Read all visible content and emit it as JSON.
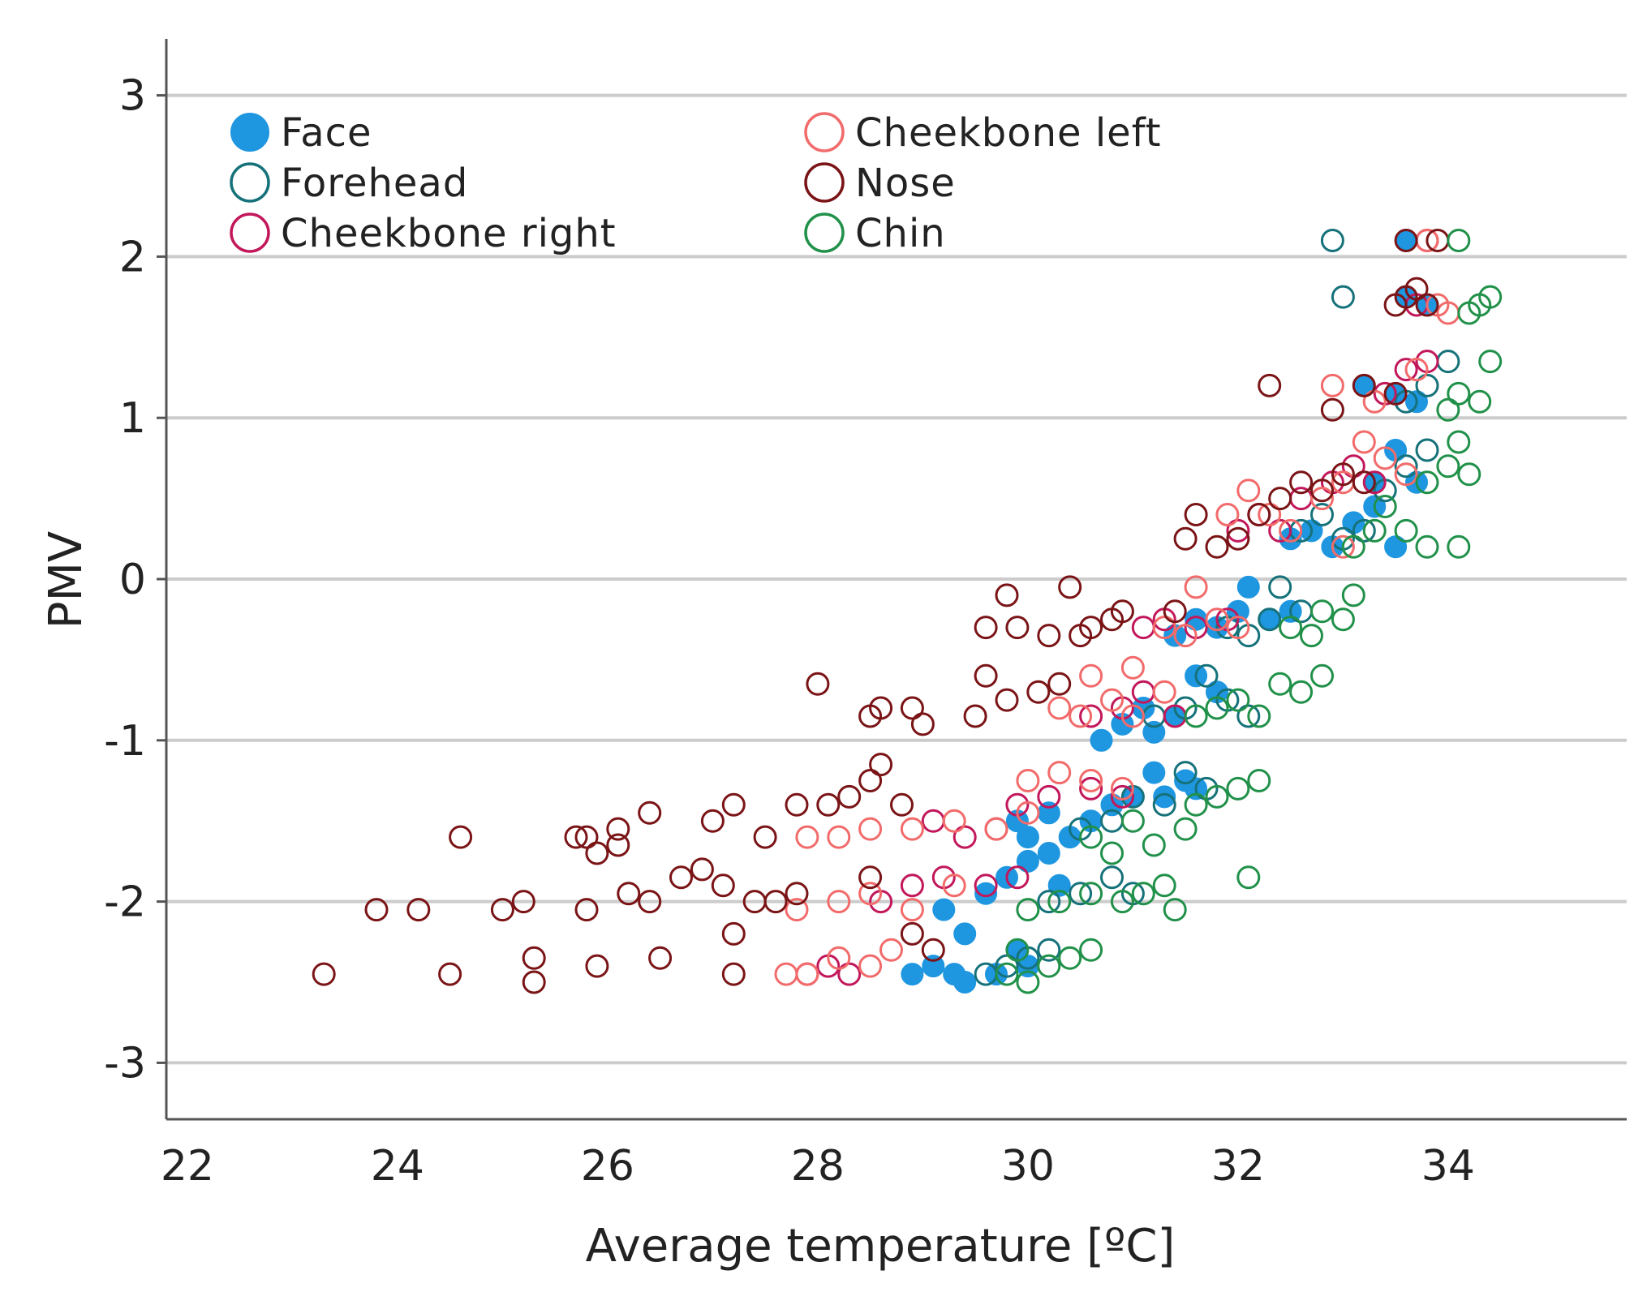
{
  "chart_data": {
    "type": "scatter",
    "title": "",
    "xlabel": "Average temperature [ºC]",
    "ylabel": "PMV",
    "xlim": [
      21.8,
      35.7
    ],
    "ylim": [
      -3.35,
      3.35
    ],
    "x_ticks": [
      22,
      24,
      26,
      28,
      30,
      32,
      34
    ],
    "y_ticks": [
      3,
      2,
      1,
      0,
      -1,
      -2,
      -3
    ],
    "grid": "horizontal",
    "legend_position": "top-left",
    "series": [
      {
        "name": "Face",
        "color": "#1e96e0",
        "marker": "filled-circle",
        "points": [
          [
            28.9,
            -2.45
          ],
          [
            29.1,
            -2.4
          ],
          [
            29.3,
            -2.45
          ],
          [
            29.4,
            -2.5
          ],
          [
            29.7,
            -2.45
          ],
          [
            29.9,
            -2.3
          ],
          [
            30.0,
            -2.4
          ],
          [
            29.2,
            -2.05
          ],
          [
            29.4,
            -2.2
          ],
          [
            29.6,
            -1.95
          ],
          [
            29.8,
            -1.85
          ],
          [
            30.0,
            -1.75
          ],
          [
            30.2,
            -1.7
          ],
          [
            30.3,
            -1.9
          ],
          [
            29.9,
            -1.5
          ],
          [
            30.0,
            -1.6
          ],
          [
            30.2,
            -1.45
          ],
          [
            30.4,
            -1.6
          ],
          [
            30.6,
            -1.5
          ],
          [
            30.8,
            -1.4
          ],
          [
            31.0,
            -1.35
          ],
          [
            31.2,
            -1.2
          ],
          [
            31.3,
            -1.35
          ],
          [
            31.5,
            -1.25
          ],
          [
            31.6,
            -1.3
          ],
          [
            30.7,
            -1.0
          ],
          [
            30.9,
            -0.9
          ],
          [
            31.1,
            -0.8
          ],
          [
            31.2,
            -0.95
          ],
          [
            31.4,
            -0.85
          ],
          [
            31.6,
            -0.6
          ],
          [
            31.8,
            -0.7
          ],
          [
            31.4,
            -0.35
          ],
          [
            31.6,
            -0.25
          ],
          [
            31.8,
            -0.3
          ],
          [
            32.0,
            -0.2
          ],
          [
            32.1,
            -0.05
          ],
          [
            32.3,
            -0.25
          ],
          [
            32.5,
            -0.2
          ],
          [
            32.5,
            0.25
          ],
          [
            32.7,
            0.3
          ],
          [
            32.9,
            0.2
          ],
          [
            33.1,
            0.35
          ],
          [
            33.3,
            0.45
          ],
          [
            33.5,
            0.2
          ],
          [
            33.3,
            0.6
          ],
          [
            33.5,
            0.8
          ],
          [
            33.7,
            0.6
          ],
          [
            33.2,
            1.2
          ],
          [
            33.5,
            1.15
          ],
          [
            33.7,
            1.1
          ],
          [
            33.6,
            1.75
          ],
          [
            33.8,
            1.7
          ],
          [
            33.6,
            2.1
          ]
        ]
      },
      {
        "name": "Forehead",
        "color": "#16727a",
        "marker": "open-circle",
        "points": [
          [
            29.6,
            -2.45
          ],
          [
            29.8,
            -2.4
          ],
          [
            30.0,
            -2.35
          ],
          [
            30.2,
            -2.3
          ],
          [
            30.2,
            -2.0
          ],
          [
            30.5,
            -1.95
          ],
          [
            30.8,
            -1.85
          ],
          [
            31.0,
            -1.95
          ],
          [
            30.5,
            -1.55
          ],
          [
            30.8,
            -1.5
          ],
          [
            31.0,
            -1.35
          ],
          [
            31.3,
            -1.4
          ],
          [
            31.5,
            -1.2
          ],
          [
            31.7,
            -1.3
          ],
          [
            31.2,
            -0.85
          ],
          [
            31.5,
            -0.8
          ],
          [
            31.7,
            -0.6
          ],
          [
            31.9,
            -0.75
          ],
          [
            32.1,
            -0.85
          ],
          [
            31.9,
            -0.3
          ],
          [
            32.1,
            -0.35
          ],
          [
            32.3,
            -0.25
          ],
          [
            32.4,
            -0.05
          ],
          [
            32.6,
            -0.2
          ],
          [
            32.6,
            0.3
          ],
          [
            32.8,
            0.4
          ],
          [
            33.0,
            0.25
          ],
          [
            33.2,
            0.3
          ],
          [
            33.4,
            0.55
          ],
          [
            33.6,
            0.7
          ],
          [
            33.8,
            0.8
          ],
          [
            33.6,
            1.1
          ],
          [
            33.8,
            1.2
          ],
          [
            34.0,
            1.35
          ],
          [
            33.0,
            1.75
          ],
          [
            32.9,
            2.1
          ]
        ]
      },
      {
        "name": "Cheekbone right",
        "color": "#c2185b",
        "marker": "open-circle",
        "points": [
          [
            27.9,
            -2.45
          ],
          [
            28.1,
            -2.4
          ],
          [
            28.3,
            -2.45
          ],
          [
            28.6,
            -2.0
          ],
          [
            28.9,
            -1.9
          ],
          [
            29.2,
            -1.85
          ],
          [
            29.6,
            -1.9
          ],
          [
            29.9,
            -1.85
          ],
          [
            29.1,
            -1.5
          ],
          [
            29.4,
            -1.6
          ],
          [
            29.7,
            -1.55
          ],
          [
            29.9,
            -1.4
          ],
          [
            30.2,
            -1.35
          ],
          [
            30.6,
            -1.3
          ],
          [
            30.9,
            -1.35
          ],
          [
            30.6,
            -0.85
          ],
          [
            30.9,
            -0.8
          ],
          [
            31.1,
            -0.7
          ],
          [
            31.4,
            -0.85
          ],
          [
            31.1,
            -0.3
          ],
          [
            31.3,
            -0.25
          ],
          [
            31.6,
            -0.3
          ],
          [
            31.9,
            -0.25
          ],
          [
            32.0,
            0.3
          ],
          [
            32.2,
            0.4
          ],
          [
            32.4,
            0.3
          ],
          [
            32.6,
            0.5
          ],
          [
            32.9,
            0.6
          ],
          [
            33.1,
            0.7
          ],
          [
            33.3,
            0.6
          ],
          [
            33.4,
            1.15
          ],
          [
            33.6,
            1.3
          ],
          [
            33.8,
            1.35
          ],
          [
            33.7,
            1.7
          ],
          [
            33.8,
            2.1
          ]
        ]
      },
      {
        "name": "Cheekbone left",
        "color": "#f26b6b",
        "marker": "open-circle",
        "points": [
          [
            27.7,
            -2.45
          ],
          [
            27.9,
            -2.45
          ],
          [
            28.2,
            -2.35
          ],
          [
            28.5,
            -2.4
          ],
          [
            28.7,
            -2.3
          ],
          [
            27.8,
            -2.05
          ],
          [
            28.2,
            -2.0
          ],
          [
            28.5,
            -1.95
          ],
          [
            28.9,
            -2.05
          ],
          [
            29.3,
            -1.9
          ],
          [
            27.9,
            -1.6
          ],
          [
            28.2,
            -1.6
          ],
          [
            28.5,
            -1.55
          ],
          [
            28.9,
            -1.55
          ],
          [
            29.3,
            -1.5
          ],
          [
            29.7,
            -1.55
          ],
          [
            30.0,
            -1.45
          ],
          [
            30.0,
            -1.25
          ],
          [
            30.3,
            -1.2
          ],
          [
            30.6,
            -1.25
          ],
          [
            30.9,
            -1.3
          ],
          [
            30.3,
            -0.8
          ],
          [
            30.5,
            -0.85
          ],
          [
            30.8,
            -0.75
          ],
          [
            31.0,
            -0.85
          ],
          [
            31.3,
            -0.7
          ],
          [
            30.6,
            -0.6
          ],
          [
            31.0,
            -0.55
          ],
          [
            31.3,
            -0.3
          ],
          [
            31.5,
            -0.35
          ],
          [
            31.6,
            -0.05
          ],
          [
            31.8,
            -0.25
          ],
          [
            32.0,
            -0.3
          ],
          [
            31.9,
            0.4
          ],
          [
            32.1,
            0.55
          ],
          [
            32.3,
            0.4
          ],
          [
            32.5,
            0.3
          ],
          [
            32.8,
            0.5
          ],
          [
            33.0,
            0.2
          ],
          [
            33.0,
            0.6
          ],
          [
            33.2,
            0.85
          ],
          [
            33.4,
            0.75
          ],
          [
            33.6,
            0.65
          ],
          [
            32.9,
            1.2
          ],
          [
            33.3,
            1.1
          ],
          [
            33.7,
            1.3
          ],
          [
            33.9,
            1.7
          ],
          [
            34.0,
            1.65
          ],
          [
            33.8,
            2.1
          ]
        ]
      },
      {
        "name": "Nose",
        "color": "#7a1416",
        "marker": "open-circle",
        "points": [
          [
            23.3,
            -2.45
          ],
          [
            24.5,
            -2.45
          ],
          [
            25.3,
            -2.35
          ],
          [
            25.3,
            -2.5
          ],
          [
            25.9,
            -2.4
          ],
          [
            26.5,
            -2.35
          ],
          [
            27.2,
            -2.45
          ],
          [
            23.8,
            -2.05
          ],
          [
            24.2,
            -2.05
          ],
          [
            25.0,
            -2.05
          ],
          [
            25.2,
            -2.0
          ],
          [
            25.8,
            -2.05
          ],
          [
            26.2,
            -1.95
          ],
          [
            26.4,
            -2.0
          ],
          [
            26.7,
            -1.85
          ],
          [
            26.9,
            -1.8
          ],
          [
            27.1,
            -1.9
          ],
          [
            27.2,
            -2.2
          ],
          [
            27.4,
            -2.0
          ],
          [
            27.6,
            -2.0
          ],
          [
            27.8,
            -1.95
          ],
          [
            24.6,
            -1.6
          ],
          [
            25.7,
            -1.6
          ],
          [
            25.8,
            -1.6
          ],
          [
            25.9,
            -1.7
          ],
          [
            26.1,
            -1.55
          ],
          [
            26.1,
            -1.65
          ],
          [
            26.4,
            -1.45
          ],
          [
            27.0,
            -1.5
          ],
          [
            27.2,
            -1.4
          ],
          [
            27.5,
            -1.6
          ],
          [
            27.8,
            -1.4
          ],
          [
            28.1,
            -1.4
          ],
          [
            28.3,
            -1.35
          ],
          [
            28.5,
            -1.25
          ],
          [
            28.6,
            -1.15
          ],
          [
            28.8,
            -1.4
          ],
          [
            28.5,
            -1.85
          ],
          [
            28.9,
            -2.2
          ],
          [
            29.1,
            -2.3
          ],
          [
            28.0,
            -0.65
          ],
          [
            28.5,
            -0.85
          ],
          [
            28.6,
            -0.8
          ],
          [
            28.9,
            -0.8
          ],
          [
            29.0,
            -0.9
          ],
          [
            29.5,
            -0.85
          ],
          [
            29.6,
            -0.6
          ],
          [
            29.8,
            -0.75
          ],
          [
            30.1,
            -0.7
          ],
          [
            30.3,
            -0.65
          ],
          [
            29.6,
            -0.3
          ],
          [
            29.8,
            -0.1
          ],
          [
            29.9,
            -0.3
          ],
          [
            30.2,
            -0.35
          ],
          [
            30.4,
            -0.05
          ],
          [
            30.5,
            -0.35
          ],
          [
            30.6,
            -0.3
          ],
          [
            30.8,
            -0.25
          ],
          [
            30.9,
            -0.2
          ],
          [
            31.4,
            -0.2
          ],
          [
            31.5,
            0.25
          ],
          [
            31.6,
            0.4
          ],
          [
            31.8,
            0.2
          ],
          [
            32.0,
            0.25
          ],
          [
            32.2,
            0.4
          ],
          [
            32.4,
            0.5
          ],
          [
            32.6,
            0.6
          ],
          [
            32.8,
            0.55
          ],
          [
            33.0,
            0.65
          ],
          [
            33.2,
            0.6
          ],
          [
            32.3,
            1.2
          ],
          [
            32.9,
            1.05
          ],
          [
            33.2,
            1.2
          ],
          [
            33.5,
            1.15
          ],
          [
            33.5,
            1.7
          ],
          [
            33.6,
            1.75
          ],
          [
            33.7,
            1.8
          ],
          [
            33.8,
            1.7
          ],
          [
            33.6,
            2.1
          ],
          [
            33.9,
            2.1
          ]
        ]
      },
      {
        "name": "Chin",
        "color": "#21914a",
        "marker": "open-circle",
        "points": [
          [
            29.8,
            -2.45
          ],
          [
            30.0,
            -2.5
          ],
          [
            30.2,
            -2.4
          ],
          [
            30.4,
            -2.35
          ],
          [
            30.6,
            -2.3
          ],
          [
            29.9,
            -2.3
          ],
          [
            30.0,
            -2.05
          ],
          [
            30.3,
            -2.0
          ],
          [
            30.6,
            -1.95
          ],
          [
            30.9,
            -2.0
          ],
          [
            31.1,
            -1.95
          ],
          [
            31.3,
            -1.9
          ],
          [
            31.4,
            -2.05
          ],
          [
            30.6,
            -1.6
          ],
          [
            30.8,
            -1.7
          ],
          [
            31.0,
            -1.5
          ],
          [
            31.2,
            -1.65
          ],
          [
            31.5,
            -1.55
          ],
          [
            31.6,
            -1.4
          ],
          [
            31.8,
            -1.35
          ],
          [
            32.0,
            -1.3
          ],
          [
            32.2,
            -1.25
          ],
          [
            32.1,
            -1.85
          ],
          [
            31.6,
            -0.85
          ],
          [
            31.8,
            -0.8
          ],
          [
            32.0,
            -0.75
          ],
          [
            32.2,
            -0.85
          ],
          [
            32.4,
            -0.65
          ],
          [
            32.6,
            -0.7
          ],
          [
            32.8,
            -0.6
          ],
          [
            32.5,
            -0.3
          ],
          [
            32.7,
            -0.35
          ],
          [
            32.8,
            -0.2
          ],
          [
            33.0,
            -0.25
          ],
          [
            33.1,
            -0.1
          ],
          [
            33.1,
            0.2
          ],
          [
            33.3,
            0.3
          ],
          [
            33.4,
            0.45
          ],
          [
            33.6,
            0.3
          ],
          [
            33.8,
            0.2
          ],
          [
            34.1,
            0.2
          ],
          [
            33.8,
            0.6
          ],
          [
            34.0,
            0.7
          ],
          [
            34.1,
            0.85
          ],
          [
            34.2,
            0.65
          ],
          [
            34.0,
            1.05
          ],
          [
            34.1,
            1.15
          ],
          [
            34.3,
            1.1
          ],
          [
            34.4,
            1.35
          ],
          [
            34.3,
            1.7
          ],
          [
            34.4,
            1.75
          ],
          [
            34.2,
            1.65
          ],
          [
            34.1,
            2.1
          ]
        ]
      }
    ]
  }
}
